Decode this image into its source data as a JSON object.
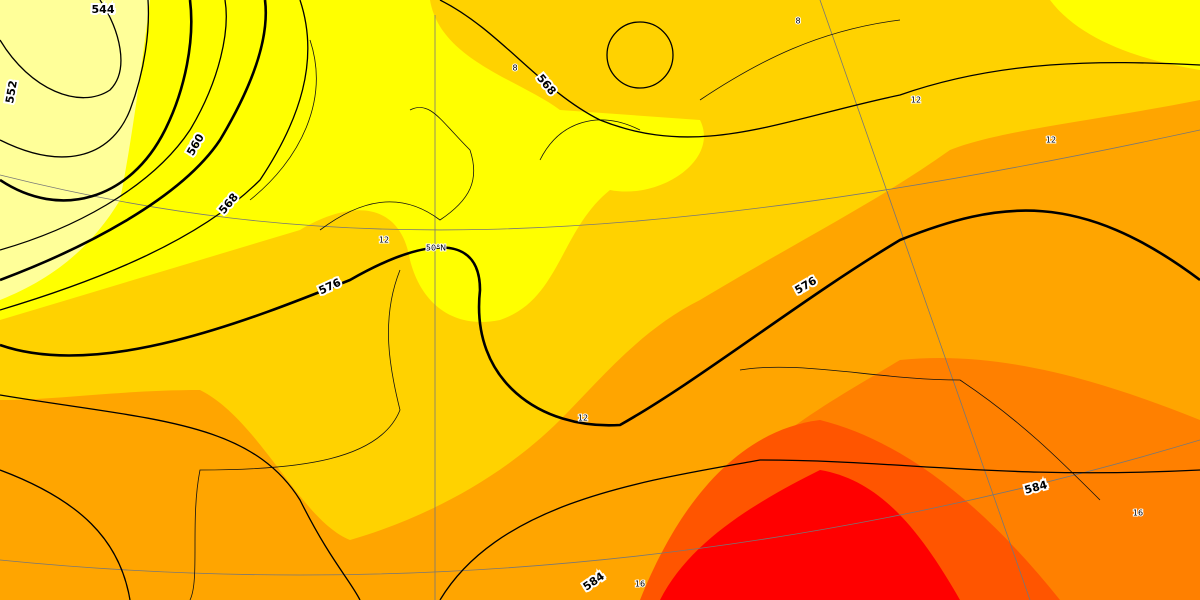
{
  "map": {
    "contour_labels": [
      "544",
      "552",
      "560",
      "568",
      "568",
      "576",
      "576",
      "584",
      "584"
    ],
    "temperature_labels": [
      "12",
      "12",
      "12",
      "12",
      "8",
      "8",
      "16",
      "16"
    ],
    "latitude_label": "50°N"
  }
}
